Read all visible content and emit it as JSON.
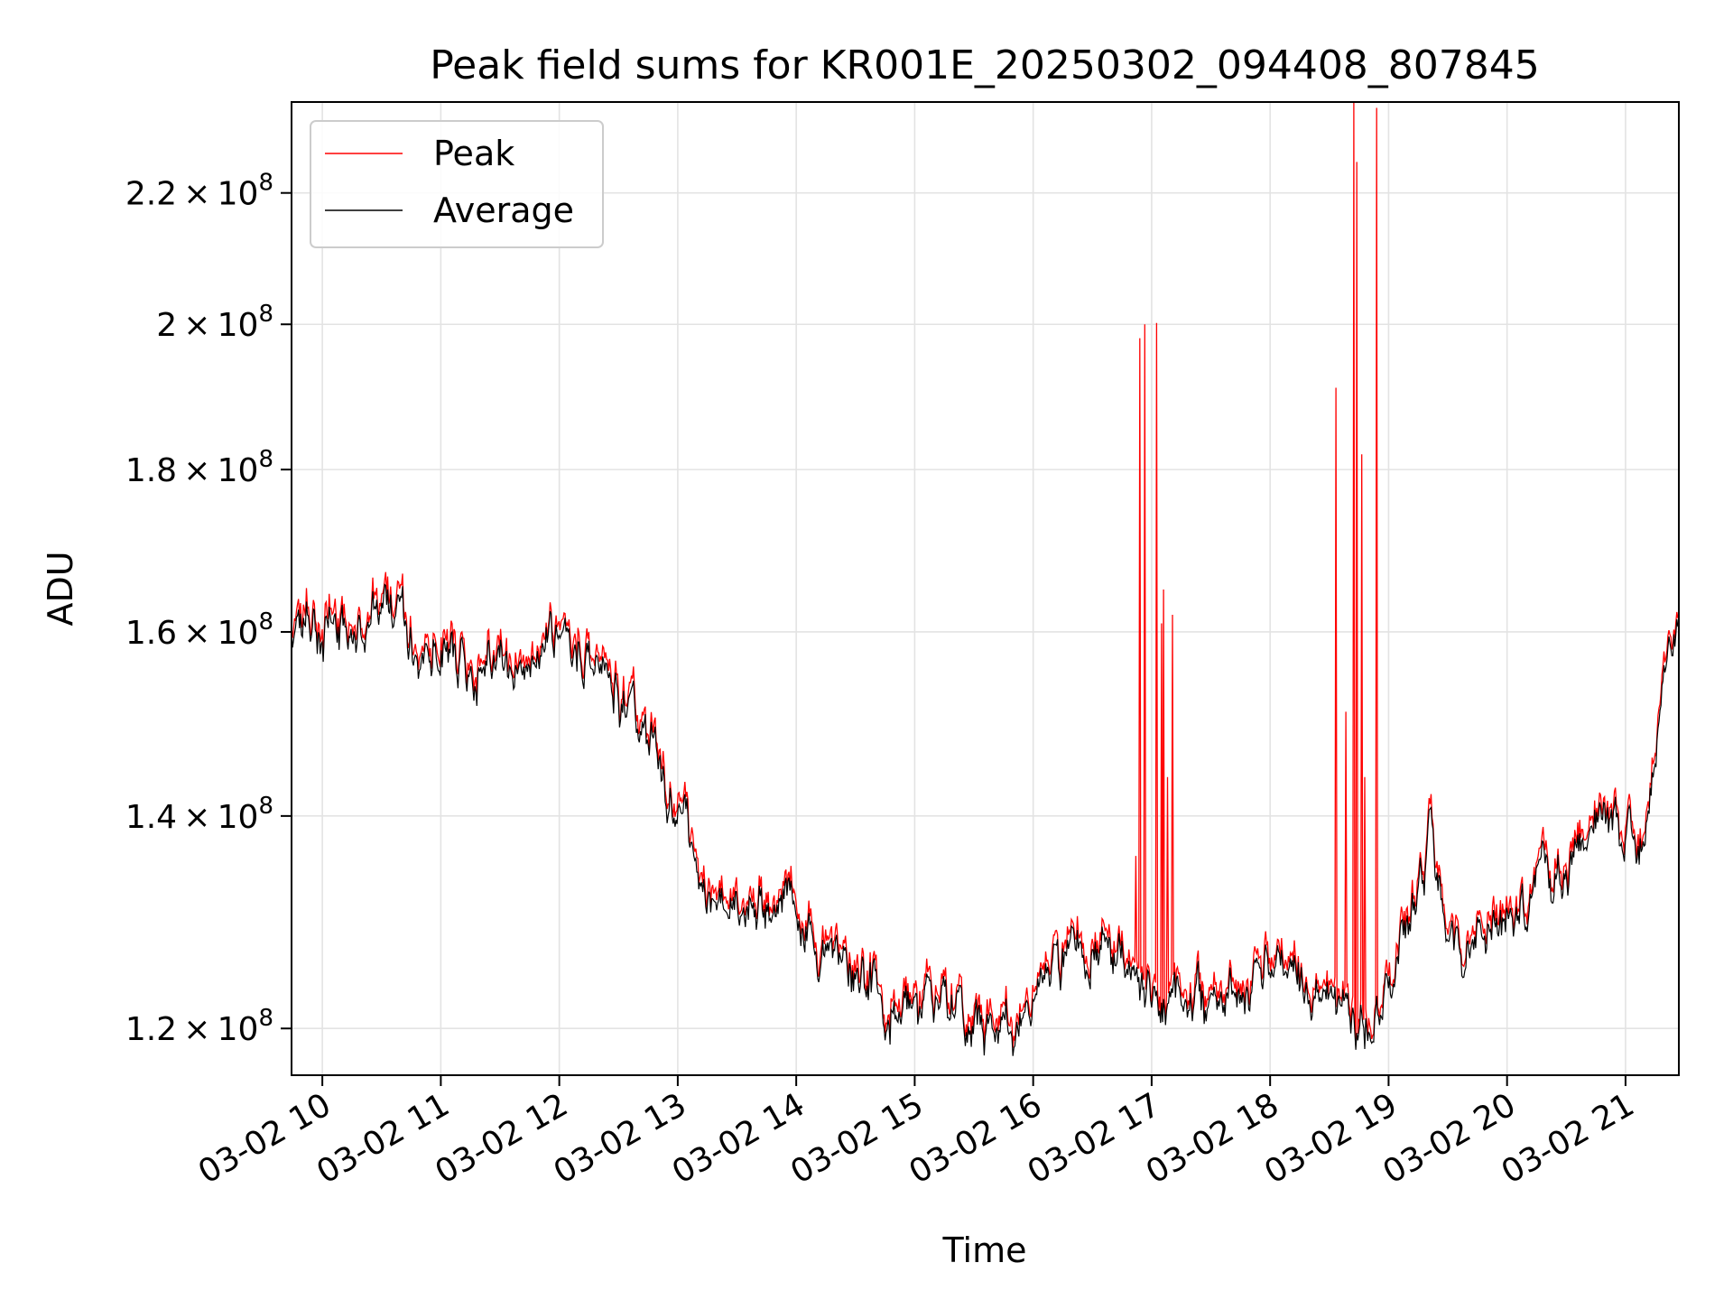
{
  "chart_data": {
    "type": "line",
    "title": "Peak field sums for KR001E_20250302_094408_807845",
    "xlabel": "Time",
    "ylabel": "ADU",
    "y_scale": "log",
    "ylim": [
      116000000,
      235000000
    ],
    "xlim_hours": [
      9.74,
      21.45
    ],
    "grid": true,
    "legend_position": "upper-left",
    "x_ticks": [
      {
        "hour": 10,
        "label": "03-02 10"
      },
      {
        "hour": 11,
        "label": "03-02 11"
      },
      {
        "hour": 12,
        "label": "03-02 12"
      },
      {
        "hour": 13,
        "label": "03-02 13"
      },
      {
        "hour": 14,
        "label": "03-02 14"
      },
      {
        "hour": 15,
        "label": "03-02 15"
      },
      {
        "hour": 16,
        "label": "03-02 16"
      },
      {
        "hour": 17,
        "label": "03-02 17"
      },
      {
        "hour": 18,
        "label": "03-02 18"
      },
      {
        "hour": 19,
        "label": "03-02 19"
      },
      {
        "hour": 20,
        "label": "03-02 20"
      },
      {
        "hour": 21,
        "label": "03-02 21"
      }
    ],
    "y_ticks": [
      {
        "value": 120000000,
        "mantissa": "1.2",
        "exponent": "8"
      },
      {
        "value": 140000000,
        "mantissa": "1.4",
        "exponent": "8"
      },
      {
        "value": 160000000,
        "mantissa": "1.6",
        "exponent": "8"
      },
      {
        "value": 180000000,
        "mantissa": "1.8",
        "exponent": "8"
      },
      {
        "value": 200000000,
        "mantissa": "2",
        "exponent": "8"
      },
      {
        "value": 220000000,
        "mantissa": "2.2",
        "exponent": "8"
      }
    ],
    "series": [
      {
        "name": "Peak",
        "color": "#ff0000"
      },
      {
        "name": "Average",
        "color": "#000000"
      }
    ],
    "baseline_hours": [
      9.74,
      10.0,
      10.3,
      10.6,
      10.85,
      11.0,
      11.3,
      11.6,
      11.85,
      12.0,
      12.3,
      12.6,
      12.85,
      13.0,
      13.25,
      13.5,
      13.75,
      14.0,
      14.25,
      14.5,
      14.75,
      15.0,
      15.3,
      15.6,
      15.85,
      16.0,
      16.3,
      16.6,
      16.85,
      17.0,
      17.3,
      17.6,
      17.85,
      18.0,
      18.25,
      18.5,
      18.75,
      19.0,
      19.2,
      19.35,
      19.5,
      19.75,
      20.0,
      20.25,
      20.5,
      20.75,
      21.0,
      21.1,
      21.2,
      21.3,
      21.35,
      21.45
    ],
    "baseline_adu": [
      160000000,
      161000000,
      162000000,
      161000000,
      157000000,
      158000000,
      156000000,
      155000000,
      158000000,
      159000000,
      158000000,
      152000000,
      145000000,
      141000000,
      133000000,
      131000000,
      130500000,
      129000000,
      127000000,
      125000000,
      123000000,
      122000000,
      122500000,
      120000000,
      121000000,
      123000000,
      126000000,
      127000000,
      126000000,
      123000000,
      121500000,
      122500000,
      124500000,
      125000000,
      124500000,
      121000000,
      120000000,
      124000000,
      131000000,
      138500000,
      130000000,
      127000000,
      130000000,
      132000000,
      135000000,
      137000000,
      139000000,
      139000000,
      142000000,
      149000000,
      156000000,
      163000000
    ],
    "peak_spikes": [
      {
        "hour": 16.87,
        "adu": 136000000
      },
      {
        "hour": 16.9,
        "adu": 198000000
      },
      {
        "hour": 16.94,
        "adu": 200000000
      },
      {
        "hour": 17.04,
        "adu": 200200000
      },
      {
        "hour": 17.08,
        "adu": 161000000
      },
      {
        "hour": 17.1,
        "adu": 165000000
      },
      {
        "hour": 17.13,
        "adu": 144000000
      },
      {
        "hour": 17.18,
        "adu": 162000000
      },
      {
        "hour": 18.56,
        "adu": 191000000
      },
      {
        "hour": 18.64,
        "adu": 151000000
      },
      {
        "hour": 18.71,
        "adu": 236000000
      },
      {
        "hour": 18.73,
        "adu": 225000000
      },
      {
        "hour": 18.77,
        "adu": 182000000
      },
      {
        "hour": 18.8,
        "adu": 144000000
      },
      {
        "hour": 18.9,
        "adu": 234000000
      }
    ]
  }
}
